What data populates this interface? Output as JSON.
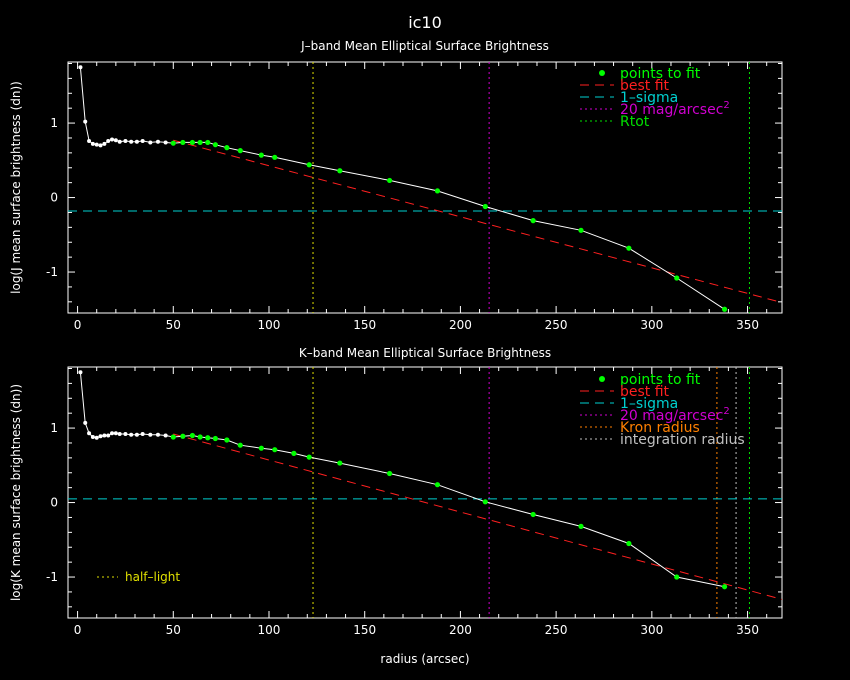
{
  "figure": {
    "title": "ic10",
    "xlabel": "radius (arcsec)"
  },
  "colors": {
    "background": "#000000",
    "axes": "#ffffff",
    "points": "#00ff00",
    "profile": "#ffffff",
    "best_fit": "#ff2020",
    "sigma": "#00d0d0",
    "mag20": "#d000d0",
    "rtot": "#00e000",
    "half_light": "#e0e000",
    "kron": "#ff8000",
    "integration": "#c0c0c0"
  },
  "chart_data": [
    {
      "type": "line",
      "title": "J–band Mean Elliptical Surface Brightness",
      "xlabel": "",
      "ylabel": "log(J mean surface brightness (dn))",
      "xlim": [
        -5,
        368
      ],
      "ylim": [
        -1.55,
        1.82
      ],
      "xticks": [
        0,
        50,
        100,
        150,
        200,
        250,
        300,
        350
      ],
      "yticks": [
        -1,
        0,
        1
      ],
      "profile": {
        "x": [
          1.5,
          4,
          6,
          8,
          10,
          12,
          14,
          16,
          18,
          20,
          22,
          25,
          28,
          31,
          34,
          38,
          42,
          46,
          50,
          55,
          60,
          64,
          68,
          72,
          78,
          85,
          96,
          103,
          121,
          137,
          163,
          188,
          213,
          238,
          263,
          288,
          313,
          338
        ],
        "y": [
          1.75,
          1.02,
          0.76,
          0.72,
          0.71,
          0.7,
          0.72,
          0.76,
          0.78,
          0.77,
          0.75,
          0.76,
          0.75,
          0.75,
          0.76,
          0.74,
          0.75,
          0.74,
          0.73,
          0.74,
          0.74,
          0.74,
          0.74,
          0.71,
          0.67,
          0.63,
          0.57,
          0.54,
          0.44,
          0.36,
          0.23,
          0.09,
          -0.12,
          -0.31,
          -0.44,
          -0.68,
          -1.08,
          -1.5
        ]
      },
      "fit_points": {
        "x": [
          50,
          55,
          60,
          64,
          68,
          72,
          78,
          85,
          96,
          103,
          121,
          137,
          163,
          188,
          213,
          238,
          263,
          288,
          313,
          338
        ],
        "y": [
          0.73,
          0.74,
          0.74,
          0.74,
          0.74,
          0.71,
          0.67,
          0.63,
          0.57,
          0.54,
          0.44,
          0.36,
          0.23,
          0.09,
          -0.12,
          -0.31,
          -0.44,
          -0.68,
          -1.08,
          -1.5
        ]
      },
      "best_fit": {
        "x": [
          50,
          368
        ],
        "y": [
          0.77,
          -1.41
        ]
      },
      "hlines": [
        {
          "y": -0.18,
          "style": "sigma"
        }
      ],
      "vlines": [
        {
          "x": 123,
          "style": "half_light"
        },
        {
          "x": 215,
          "style": "mag20"
        },
        {
          "x": 351,
          "style": "rtot"
        }
      ],
      "legend": {
        "placement": "top-right",
        "entries": [
          {
            "label": "points to fit",
            "style": "points"
          },
          {
            "label": "best fit",
            "style": "best_fit"
          },
          {
            "label": "1–sigma",
            "style": "sigma"
          },
          {
            "label": "20 mag/arcsec",
            "sup": "2",
            "style": "mag20"
          },
          {
            "label": "Rtot",
            "style": "rtot"
          }
        ]
      }
    },
    {
      "type": "line",
      "title": "K–band Mean Elliptical Surface Brightness",
      "xlabel": "radius (arcsec)",
      "ylabel": "log(K mean surface brightness (dn))",
      "xlim": [
        -5,
        368
      ],
      "ylim": [
        -1.55,
        1.82
      ],
      "xticks": [
        0,
        50,
        100,
        150,
        200,
        250,
        300,
        350
      ],
      "yticks": [
        -1,
        0,
        1
      ],
      "profile": {
        "x": [
          1.5,
          4,
          6,
          8,
          10,
          12,
          14,
          16,
          18,
          20,
          22,
          25,
          28,
          31,
          34,
          38,
          42,
          46,
          50,
          55,
          60,
          64,
          68,
          72,
          78,
          85,
          96,
          103,
          113,
          121,
          137,
          163,
          188,
          213,
          238,
          263,
          288,
          313,
          338
        ],
        "y": [
          1.75,
          1.07,
          0.93,
          0.88,
          0.87,
          0.89,
          0.9,
          0.9,
          0.93,
          0.93,
          0.92,
          0.92,
          0.91,
          0.91,
          0.92,
          0.91,
          0.91,
          0.9,
          0.88,
          0.89,
          0.9,
          0.88,
          0.87,
          0.86,
          0.84,
          0.77,
          0.73,
          0.71,
          0.66,
          0.61,
          0.53,
          0.39,
          0.24,
          0.01,
          -0.16,
          -0.32,
          -0.55,
          -1.0,
          -1.13
        ]
      },
      "fit_points": {
        "x": [
          50,
          55,
          60,
          64,
          68,
          72,
          78,
          85,
          96,
          103,
          113,
          121,
          137,
          163,
          188,
          213,
          238,
          263,
          288,
          313,
          338
        ],
        "y": [
          0.88,
          0.89,
          0.9,
          0.88,
          0.87,
          0.86,
          0.84,
          0.77,
          0.73,
          0.71,
          0.66,
          0.61,
          0.53,
          0.39,
          0.24,
          0.01,
          -0.16,
          -0.32,
          -0.55,
          -1.0,
          -1.13
        ]
      },
      "best_fit": {
        "x": [
          50,
          368
        ],
        "y": [
          0.92,
          -1.3
        ]
      },
      "hlines": [
        {
          "y": 0.05,
          "style": "sigma"
        }
      ],
      "vlines": [
        {
          "x": 123,
          "style": "half_light"
        },
        {
          "x": 215,
          "style": "mag20"
        },
        {
          "x": 334,
          "style": "kron"
        },
        {
          "x": 344,
          "style": "integration"
        },
        {
          "x": 351,
          "style": "rtot"
        }
      ],
      "legend": {
        "placement": "top-right",
        "entries": [
          {
            "label": "points to fit",
            "style": "points"
          },
          {
            "label": "best fit",
            "style": "best_fit"
          },
          {
            "label": "1–sigma",
            "style": "sigma"
          },
          {
            "label": "20 mag/arcsec",
            "sup": "2",
            "style": "mag20"
          },
          {
            "label": "Kron radius",
            "style": "kron"
          },
          {
            "label": "integration radius",
            "style": "integration"
          }
        ]
      },
      "annotation": {
        "label": "half–light",
        "style": "half_light",
        "placement": "bottom-left"
      }
    }
  ]
}
